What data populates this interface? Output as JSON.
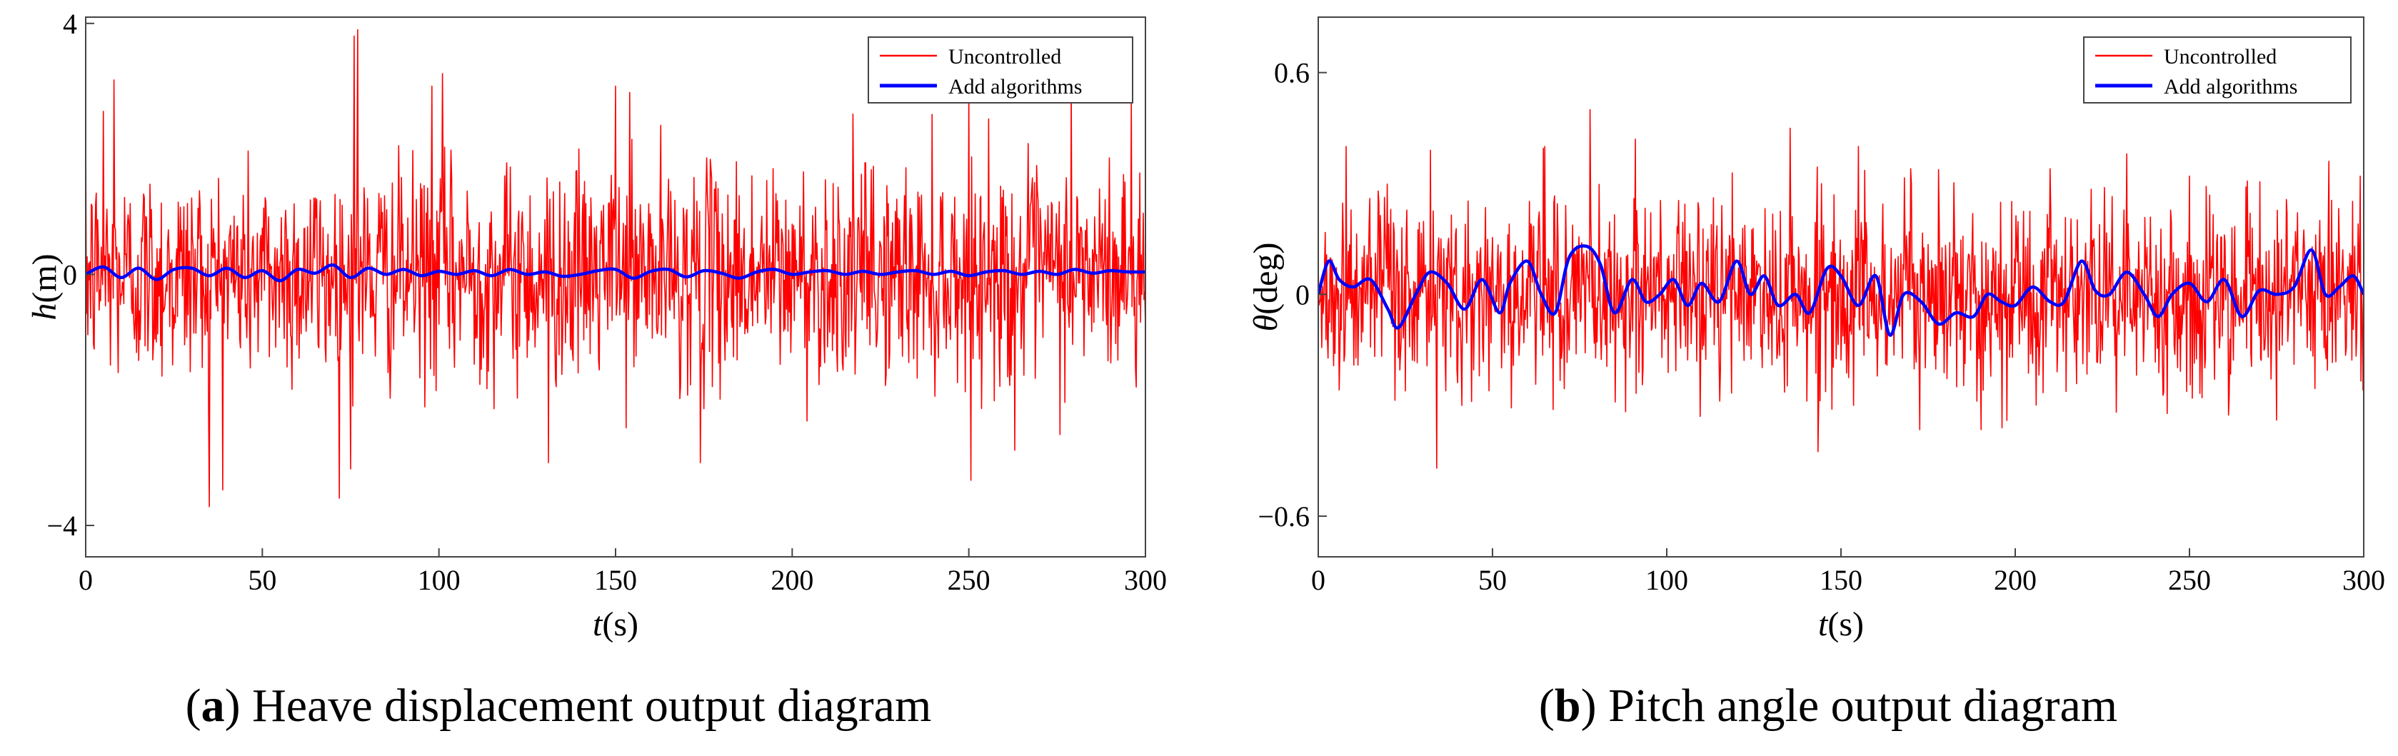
{
  "chart_data": [
    {
      "type": "line",
      "panel": "a",
      "caption": {
        "letter": "a",
        "text": "Heave displacement output diagram"
      },
      "xlabel": {
        "symbol": "t",
        "unit": "(s)"
      },
      "ylabel": {
        "symbol": "h",
        "unit": "(m)"
      },
      "xlim": [
        0,
        300
      ],
      "ylim": [
        -4.5,
        4.1
      ],
      "xticks": [
        0,
        50,
        100,
        150,
        200,
        250,
        300
      ],
      "yticks": [
        {
          "value": 4,
          "label": "4"
        },
        {
          "value": 0,
          "label": "0"
        },
        {
          "value": -4,
          "label": "−4"
        }
      ],
      "legend": {
        "position": "top-right",
        "entries": [
          "Uncontrolled",
          "Add algorithms"
        ]
      },
      "series": [
        {
          "name": "Uncontrolled",
          "color": "#ff0000",
          "description": "dense random noise sampled every ~0.2 s",
          "typical_amplitude": 1.0,
          "peaks": [
            [
              5,
              2.6
            ],
            [
              8,
              3.1
            ],
            [
              35,
              -3.7
            ],
            [
              76,
              3.8
            ],
            [
              77,
              3.9
            ],
            [
              75,
              -3.1
            ],
            [
              98,
              3.0
            ],
            [
              101,
              3.2
            ],
            [
              131,
              -3.0
            ],
            [
              150,
              3.0
            ],
            [
              154,
              2.9
            ],
            [
              174,
              -3.0
            ],
            [
              250,
              2.9
            ],
            [
              263,
              -2.8
            ],
            [
              279,
              3.0
            ],
            [
              296,
              2.8
            ]
          ]
        },
        {
          "name": "Add algorithms",
          "color": "#0000ff",
          "description": "smooth response close to zero",
          "x": [
            0,
            5,
            10,
            15,
            20,
            25,
            30,
            35,
            40,
            45,
            50,
            55,
            60,
            65,
            70,
            75,
            80,
            85,
            90,
            95,
            100,
            105,
            110,
            115,
            120,
            125,
            130,
            135,
            140,
            145,
            150,
            155,
            160,
            165,
            170,
            175,
            180,
            185,
            190,
            195,
            200,
            205,
            210,
            215,
            220,
            225,
            230,
            235,
            240,
            245,
            250,
            255,
            260,
            265,
            270,
            275,
            280,
            285,
            290,
            295,
            300
          ],
          "y": [
            0.0,
            0.12,
            -0.05,
            0.1,
            -0.08,
            0.08,
            0.1,
            -0.02,
            0.1,
            -0.05,
            0.06,
            -0.1,
            0.08,
            0.02,
            0.15,
            -0.05,
            0.1,
            0.0,
            0.08,
            -0.02,
            0.05,
            0.0,
            0.06,
            -0.02,
            0.08,
            0.0,
            0.04,
            -0.03,
            0.0,
            0.06,
            0.08,
            -0.06,
            0.05,
            0.08,
            -0.04,
            0.06,
            0.02,
            -0.06,
            0.04,
            0.08,
            0.0,
            0.04,
            0.06,
            0.0,
            0.05,
            0.0,
            0.04,
            0.06,
            0.0,
            0.05,
            -0.02,
            0.04,
            0.06,
            0.0,
            0.05,
            0.0,
            0.08,
            0.02,
            0.06,
            0.04,
            0.04
          ]
        }
      ]
    },
    {
      "type": "line",
      "panel": "b",
      "caption": {
        "letter": "b",
        "text": "Pitch angle output diagram"
      },
      "xlabel": {
        "symbol": "t",
        "unit": "(s)"
      },
      "ylabel": {
        "symbol": "θ",
        "unit": "(deg)"
      },
      "xlim": [
        0,
        300
      ],
      "ylim": [
        -0.71,
        0.75
      ],
      "xticks": [
        0,
        50,
        100,
        150,
        200,
        250,
        300
      ],
      "yticks": [
        {
          "value": 0.6,
          "label": "0.6"
        },
        {
          "value": 0,
          "label": "0"
        },
        {
          "value": -0.6,
          "label": "−0.6"
        }
      ],
      "legend": {
        "position": "top-right",
        "entries": [
          "Uncontrolled",
          "Add algorithms"
        ]
      },
      "series": [
        {
          "name": "Uncontrolled",
          "color": "#ff0000",
          "description": "dense random noise sampled every ~0.2 s",
          "typical_amplitude": 0.15,
          "peaks": [
            [
              8,
              0.4
            ],
            [
              34,
              -0.47
            ],
            [
              65,
              0.4
            ],
            [
              78,
              0.5
            ],
            [
              91,
              0.42
            ],
            [
              155,
              0.4
            ],
            [
              170,
              0.34
            ],
            [
              210,
              0.34
            ],
            [
              232,
              0.38
            ],
            [
              250,
              0.32
            ],
            [
              275,
              -0.34
            ],
            [
              290,
              0.36
            ],
            [
              299,
              0.32
            ]
          ]
        },
        {
          "name": "Add algorithms",
          "color": "#0000ff",
          "description": "smooth oscillating response",
          "x": [
            0,
            3,
            6,
            10,
            15,
            20,
            23,
            28,
            32,
            37,
            42,
            47,
            52,
            55,
            60,
            64,
            68,
            72,
            77,
            81,
            85,
            90,
            94,
            98,
            102,
            106,
            110,
            115,
            120,
            124,
            128,
            132,
            137,
            141,
            146,
            150,
            155,
            160,
            164,
            168,
            173,
            178,
            183,
            188,
            192,
            196,
            200,
            205,
            210,
            214,
            219,
            223,
            227,
            232,
            237,
            241,
            245,
            250,
            255,
            260,
            265,
            270,
            275,
            280,
            285,
            289,
            293,
            297,
            300
          ],
          "y": [
            0.0,
            0.09,
            0.04,
            0.02,
            0.04,
            -0.04,
            -0.09,
            0.0,
            0.06,
            0.03,
            -0.04,
            0.04,
            -0.05,
            0.03,
            0.09,
            0.0,
            -0.05,
            0.1,
            0.13,
            0.08,
            -0.05,
            0.04,
            -0.02,
            0.0,
            0.04,
            -0.03,
            0.03,
            -0.02,
            0.09,
            0.0,
            0.05,
            -0.03,
            0.0,
            -0.05,
            0.07,
            0.05,
            -0.03,
            0.05,
            -0.11,
            0.0,
            -0.02,
            -0.08,
            -0.05,
            -0.06,
            0.0,
            -0.02,
            -0.03,
            0.02,
            -0.02,
            -0.02,
            0.09,
            0.01,
            0.0,
            0.06,
            0.0,
            -0.06,
            0.0,
            0.03,
            -0.02,
            0.04,
            -0.06,
            0.01,
            0.0,
            0.02,
            0.12,
            0.0,
            0.02,
            0.05,
            0.0
          ]
        }
      ]
    }
  ]
}
